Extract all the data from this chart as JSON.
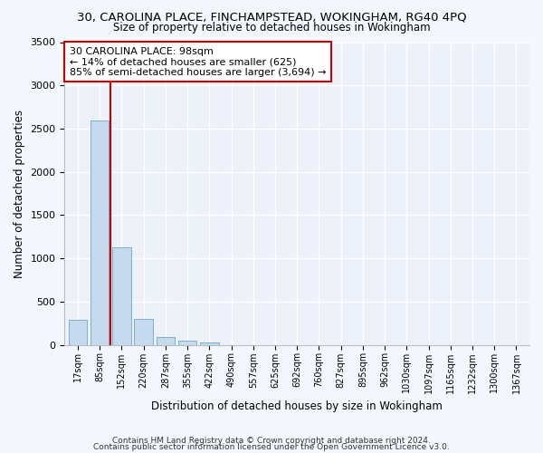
{
  "title1": "30, CAROLINA PLACE, FINCHAMPSTEAD, WOKINGHAM, RG40 4PQ",
  "title2": "Size of property relative to detached houses in Wokingham",
  "xlabel": "Distribution of detached houses by size in Wokingham",
  "ylabel": "Number of detached properties",
  "categories": [
    "17sqm",
    "85sqm",
    "152sqm",
    "220sqm",
    "287sqm",
    "355sqm",
    "422sqm",
    "490sqm",
    "557sqm",
    "625sqm",
    "692sqm",
    "760sqm",
    "827sqm",
    "895sqm",
    "962sqm",
    "1030sqm",
    "1097sqm",
    "1165sqm",
    "1232sqm",
    "1300sqm",
    "1367sqm"
  ],
  "values": [
    290,
    2590,
    1130,
    300,
    90,
    45,
    25,
    0,
    0,
    0,
    0,
    0,
    0,
    0,
    0,
    0,
    0,
    0,
    0,
    0,
    0
  ],
  "bar_color": "#c5d9ef",
  "bar_edge_color": "#7bafd4",
  "marker_label": "30 CAROLINA PLACE: 98sqm\n← 14% of detached houses are smaller (625)\n85% of semi-detached houses are larger (3,694) →",
  "annotation_box_color": "#ffffff",
  "annotation_box_edge": "#cc0000",
  "vline_color": "#cc0000",
  "background_color": "#edf2fa",
  "grid_color": "#ffffff",
  "fig_background": "#f5f7ff",
  "ylim": [
    0,
    3500
  ],
  "yticks": [
    0,
    500,
    1000,
    1500,
    2000,
    2500,
    3000,
    3500
  ],
  "footer1": "Contains HM Land Registry data © Crown copyright and database right 2024.",
  "footer2": "Contains public sector information licensed under the Open Government Licence v3.0."
}
